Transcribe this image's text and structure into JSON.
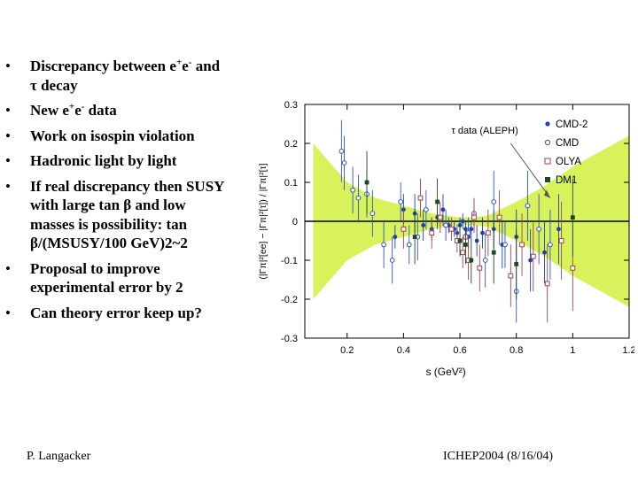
{
  "slide": {
    "bullets": [
      {
        "parts": [
          "Discrepancy between e",
          "+",
          "e",
          "-",
          " and"
        ],
        "line2": "τ decay"
      },
      {
        "parts": [
          "New e",
          "+",
          "e",
          "-",
          " data"
        ]
      },
      {
        "text": "Work on isospin violation"
      },
      {
        "text": "Hadronic light by light"
      },
      {
        "lines": [
          "If real discrepancy then SUSY",
          "with large tan β and low",
          "masses is possibility:   tan",
          "β/(MSUSY/100 GeV)2~2"
        ]
      },
      {
        "lines": [
          "Proposal to improve",
          "experimental error by 2"
        ]
      },
      {
        "text": "Can theory error keep up?"
      }
    ],
    "footer_left": "P. Langacker",
    "footer_right": "ICHEP2004 (8/16/04)"
  },
  "chart_data": {
    "type": "scatter",
    "xlabel": "s   (GeV²)",
    "ylabel": "(|Γπ|²[ee] − |Γπ|²[τ]) / |Γπ|²[τ]",
    "xlim": [
      0.05,
      1.2
    ],
    "ylim": [
      -0.3,
      0.3
    ],
    "xticks": [
      "0.2",
      "0.4",
      "0.6",
      "0.8",
      "1",
      "1.2"
    ],
    "yticks": [
      "0.3",
      "0.2",
      "0.1",
      "0",
      "-0.1",
      "-0.2",
      "-0.3"
    ],
    "annotation": "τ data (ALEPH)",
    "band_color": "#d7f25a",
    "legend_position": "top-right",
    "band": {
      "x": [
        0.08,
        0.2,
        0.3,
        0.4,
        0.5,
        0.6,
        0.65,
        0.7,
        0.8,
        0.9,
        1.0,
        1.1,
        1.2
      ],
      "upper": [
        0.2,
        0.1,
        0.06,
        0.04,
        0.02,
        0.01,
        0.01,
        0.015,
        0.05,
        0.09,
        0.14,
        0.18,
        0.22
      ],
      "lower": [
        -0.2,
        -0.1,
        -0.06,
        -0.04,
        -0.02,
        -0.01,
        -0.01,
        -0.015,
        -0.05,
        -0.09,
        -0.14,
        -0.18,
        -0.22
      ]
    },
    "series": [
      {
        "name": "CMD-2",
        "color": "#1f3fb5",
        "marker": "filled-circle",
        "points": [
          [
            0.37,
            -0.04,
            0.03
          ],
          [
            0.4,
            0.03,
            0.04
          ],
          [
            0.44,
            0.02,
            0.05
          ],
          [
            0.47,
            -0.01,
            0.04
          ],
          [
            0.5,
            -0.02,
            0.03
          ],
          [
            0.52,
            0.01,
            0.03
          ],
          [
            0.54,
            0.03,
            0.04
          ],
          [
            0.56,
            -0.01,
            0.02
          ],
          [
            0.58,
            -0.02,
            0.02
          ],
          [
            0.59,
            -0.03,
            0.02
          ],
          [
            0.6,
            -0.01,
            0.02
          ],
          [
            0.61,
            0.0,
            0.02
          ],
          [
            0.62,
            -0.02,
            0.02
          ],
          [
            0.63,
            -0.04,
            0.03
          ],
          [
            0.64,
            -0.02,
            0.02
          ],
          [
            0.66,
            -0.05,
            0.04
          ],
          [
            0.68,
            -0.03,
            0.04
          ],
          [
            0.72,
            -0.02,
            0.05
          ],
          [
            0.75,
            -0.06,
            0.06
          ],
          [
            0.8,
            -0.04,
            0.07
          ],
          [
            0.85,
            -0.1,
            0.08
          ],
          [
            0.9,
            -0.08,
            0.08
          ],
          [
            0.95,
            -0.02,
            0.09
          ]
        ]
      },
      {
        "name": "CMD",
        "color": "#2e54c8",
        "marker": "open-circle",
        "points": [
          [
            0.18,
            0.18,
            0.08
          ],
          [
            0.19,
            0.15,
            0.07
          ],
          [
            0.22,
            0.08,
            0.06
          ],
          [
            0.24,
            0.06,
            0.06
          ],
          [
            0.27,
            0.07,
            0.06
          ],
          [
            0.29,
            0.02,
            0.06
          ],
          [
            0.33,
            -0.06,
            0.06
          ],
          [
            0.36,
            -0.1,
            0.06
          ],
          [
            0.39,
            0.05,
            0.05
          ],
          [
            0.42,
            -0.06,
            0.05
          ],
          [
            0.45,
            -0.04,
            0.06
          ],
          [
            0.48,
            0.03,
            0.05
          ],
          [
            0.55,
            -0.01,
            0.04
          ],
          [
            0.63,
            -0.03,
            0.04
          ],
          [
            0.65,
            0.02,
            0.04
          ],
          [
            0.69,
            -0.1,
            0.07
          ],
          [
            0.72,
            0.05,
            0.08
          ],
          [
            0.76,
            -0.06,
            0.06
          ],
          [
            0.8,
            -0.18,
            0.08
          ],
          [
            0.84,
            0.04,
            0.09
          ],
          [
            0.88,
            -0.02,
            0.09
          ],
          [
            0.92,
            -0.06,
            0.09
          ]
        ]
      },
      {
        "name": "OLYA",
        "color": "#a2424c",
        "marker": "open-square",
        "points": [
          [
            0.4,
            -0.02,
            0.05
          ],
          [
            0.46,
            0.06,
            0.05
          ],
          [
            0.5,
            -0.03,
            0.04
          ],
          [
            0.53,
            0.01,
            0.04
          ],
          [
            0.57,
            -0.02,
            0.03
          ],
          [
            0.59,
            -0.05,
            0.03
          ],
          [
            0.61,
            -0.08,
            0.04
          ],
          [
            0.62,
            -0.04,
            0.03
          ],
          [
            0.63,
            -0.1,
            0.05
          ],
          [
            0.65,
            0.01,
            0.04
          ],
          [
            0.67,
            -0.12,
            0.06
          ],
          [
            0.7,
            -0.03,
            0.06
          ],
          [
            0.74,
            0.01,
            0.07
          ],
          [
            0.78,
            -0.14,
            0.08
          ],
          [
            0.82,
            -0.06,
            0.08
          ],
          [
            0.86,
            -0.09,
            0.09
          ],
          [
            0.91,
            -0.16,
            0.1
          ],
          [
            0.96,
            -0.05,
            0.1
          ],
          [
            1.0,
            -0.12,
            0.11
          ]
        ]
      },
      {
        "name": "DM1",
        "color": "#1e4a22",
        "marker": "filled-square",
        "points": [
          [
            0.27,
            0.1,
            0.08
          ],
          [
            0.44,
            -0.04,
            0.07
          ],
          [
            0.52,
            0.05,
            0.06
          ],
          [
            0.6,
            -0.05,
            0.04
          ],
          [
            0.62,
            -0.06,
            0.05
          ],
          [
            0.64,
            -0.1,
            0.06
          ],
          [
            0.72,
            -0.08,
            0.08
          ],
          [
            0.8,
            -0.11,
            0.09
          ],
          [
            1.0,
            0.01,
            0.1
          ]
        ]
      }
    ]
  }
}
